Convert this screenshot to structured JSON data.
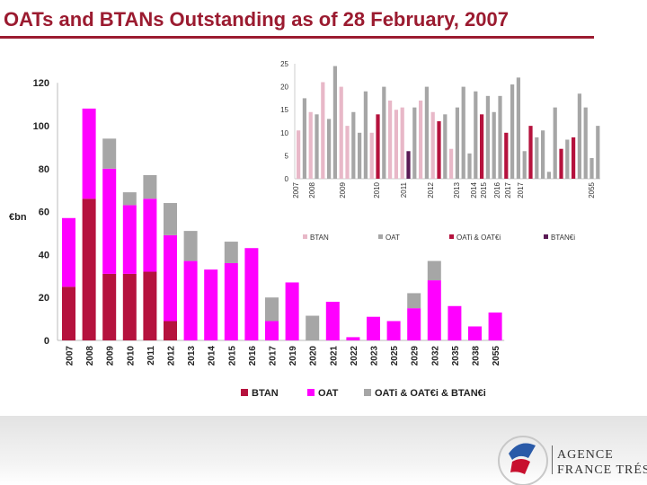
{
  "header": {
    "title": "OATs and BTANs Outstanding as of 28 February, 2007"
  },
  "logo": {
    "line1": "AGENCE",
    "line2": "FRANCE TRÉSOR"
  },
  "chart_data": [
    {
      "type": "bar",
      "stacked": true,
      "title": "",
      "ylabel": "€bn",
      "ylim": [
        0,
        120
      ],
      "yticks": [
        0,
        20,
        40,
        60,
        80,
        100,
        120
      ],
      "grid": false,
      "legend_position": "bottom",
      "categories": [
        "2007",
        "2008",
        "2009",
        "2010",
        "2011",
        "2012",
        "2013",
        "2014",
        "2015",
        "2016",
        "2017",
        "2019",
        "2020",
        "2021",
        "2022",
        "2023",
        "2025",
        "2029",
        "2032",
        "2035",
        "2038",
        "2055"
      ],
      "series": [
        {
          "name": "BTAN",
          "color": "#b5123d",
          "values": [
            25,
            66,
            31,
            31,
            32,
            9,
            0,
            0,
            0,
            0,
            0,
            0,
            0,
            0,
            0,
            0,
            0,
            0,
            0,
            0,
            0,
            0
          ]
        },
        {
          "name": "OAT",
          "color": "#ff00ff",
          "values": [
            32,
            42,
            49,
            32,
            34,
            40,
            37,
            33,
            36,
            43,
            9,
            27,
            0,
            18,
            1.5,
            11,
            9,
            15,
            28,
            16,
            6.5,
            13
          ]
        },
        {
          "name": "OATi & OAT€i & BTAN€i",
          "color": "#a6a6a6",
          "values": [
            0,
            0,
            14,
            6,
            11,
            15,
            14,
            0,
            10,
            0,
            11,
            0,
            11.5,
            0,
            0,
            0,
            0,
            7,
            9,
            0,
            0,
            0
          ]
        }
      ]
    },
    {
      "type": "bar",
      "title": "",
      "ylim": [
        0,
        25
      ],
      "yticks": [
        0,
        5,
        10,
        15,
        20,
        25
      ],
      "grid": false,
      "legend_position": "bottom",
      "year_labels": [
        "2007",
        "2008",
        "2009",
        "2010",
        "2011",
        "2012",
        "2013",
        "2014",
        "2015",
        "2016",
        "2017",
        "2017",
        "2055"
      ],
      "series": [
        {
          "name": "BTAN",
          "color": "#e8b8c8"
        },
        {
          "name": "OAT",
          "color": "#a6a6a6"
        },
        {
          "name": "OATi & OAT€i",
          "color": "#b5123d"
        },
        {
          "name": "BTAN€i",
          "color": "#5a1a55"
        }
      ],
      "bars": [
        {
          "s": 0,
          "v": 10.5
        },
        {
          "s": 1,
          "v": 17.5
        },
        {
          "s": 0,
          "v": 14.5
        },
        {
          "s": 1,
          "v": 14
        },
        {
          "s": 0,
          "v": 21
        },
        {
          "s": 1,
          "v": 13
        },
        {
          "s": 1,
          "v": 24.5
        },
        {
          "s": 0,
          "v": 20
        },
        {
          "s": 0,
          "v": 11.5
        },
        {
          "s": 1,
          "v": 14.5
        },
        {
          "s": 1,
          "v": 10
        },
        {
          "s": 1,
          "v": 19
        },
        {
          "s": 0,
          "v": 10
        },
        {
          "s": 2,
          "v": 14
        },
        {
          "s": 1,
          "v": 20
        },
        {
          "s": 0,
          "v": 17
        },
        {
          "s": 0,
          "v": 15
        },
        {
          "s": 0,
          "v": 15.5
        },
        {
          "s": 3,
          "v": 6
        },
        {
          "s": 1,
          "v": 15.5
        },
        {
          "s": 0,
          "v": 17
        },
        {
          "s": 1,
          "v": 20
        },
        {
          "s": 0,
          "v": 14.5
        },
        {
          "s": 2,
          "v": 12.5
        },
        {
          "s": 1,
          "v": 14
        },
        {
          "s": 0,
          "v": 6.5
        },
        {
          "s": 1,
          "v": 15.5
        },
        {
          "s": 1,
          "v": 20
        },
        {
          "s": 1,
          "v": 5.5
        },
        {
          "s": 1,
          "v": 19
        },
        {
          "s": 2,
          "v": 14
        },
        {
          "s": 1,
          "v": 18
        },
        {
          "s": 1,
          "v": 14.5
        },
        {
          "s": 1,
          "v": 18
        },
        {
          "s": 2,
          "v": 10
        },
        {
          "s": 1,
          "v": 20.5
        },
        {
          "s": 1,
          "v": 22
        },
        {
          "s": 1,
          "v": 6
        },
        {
          "s": 2,
          "v": 11.5
        },
        {
          "s": 1,
          "v": 9
        },
        {
          "s": 1,
          "v": 10.5
        },
        {
          "s": 1,
          "v": 1.5
        },
        {
          "s": 1,
          "v": 15.5
        },
        {
          "s": 2,
          "v": 6.5
        },
        {
          "s": 1,
          "v": 8.5
        },
        {
          "s": 2,
          "v": 9
        },
        {
          "s": 1,
          "v": 18.5
        },
        {
          "s": 1,
          "v": 15.5
        },
        {
          "s": 1,
          "v": 4.5
        },
        {
          "s": 1,
          "v": 11.5
        }
      ]
    }
  ]
}
